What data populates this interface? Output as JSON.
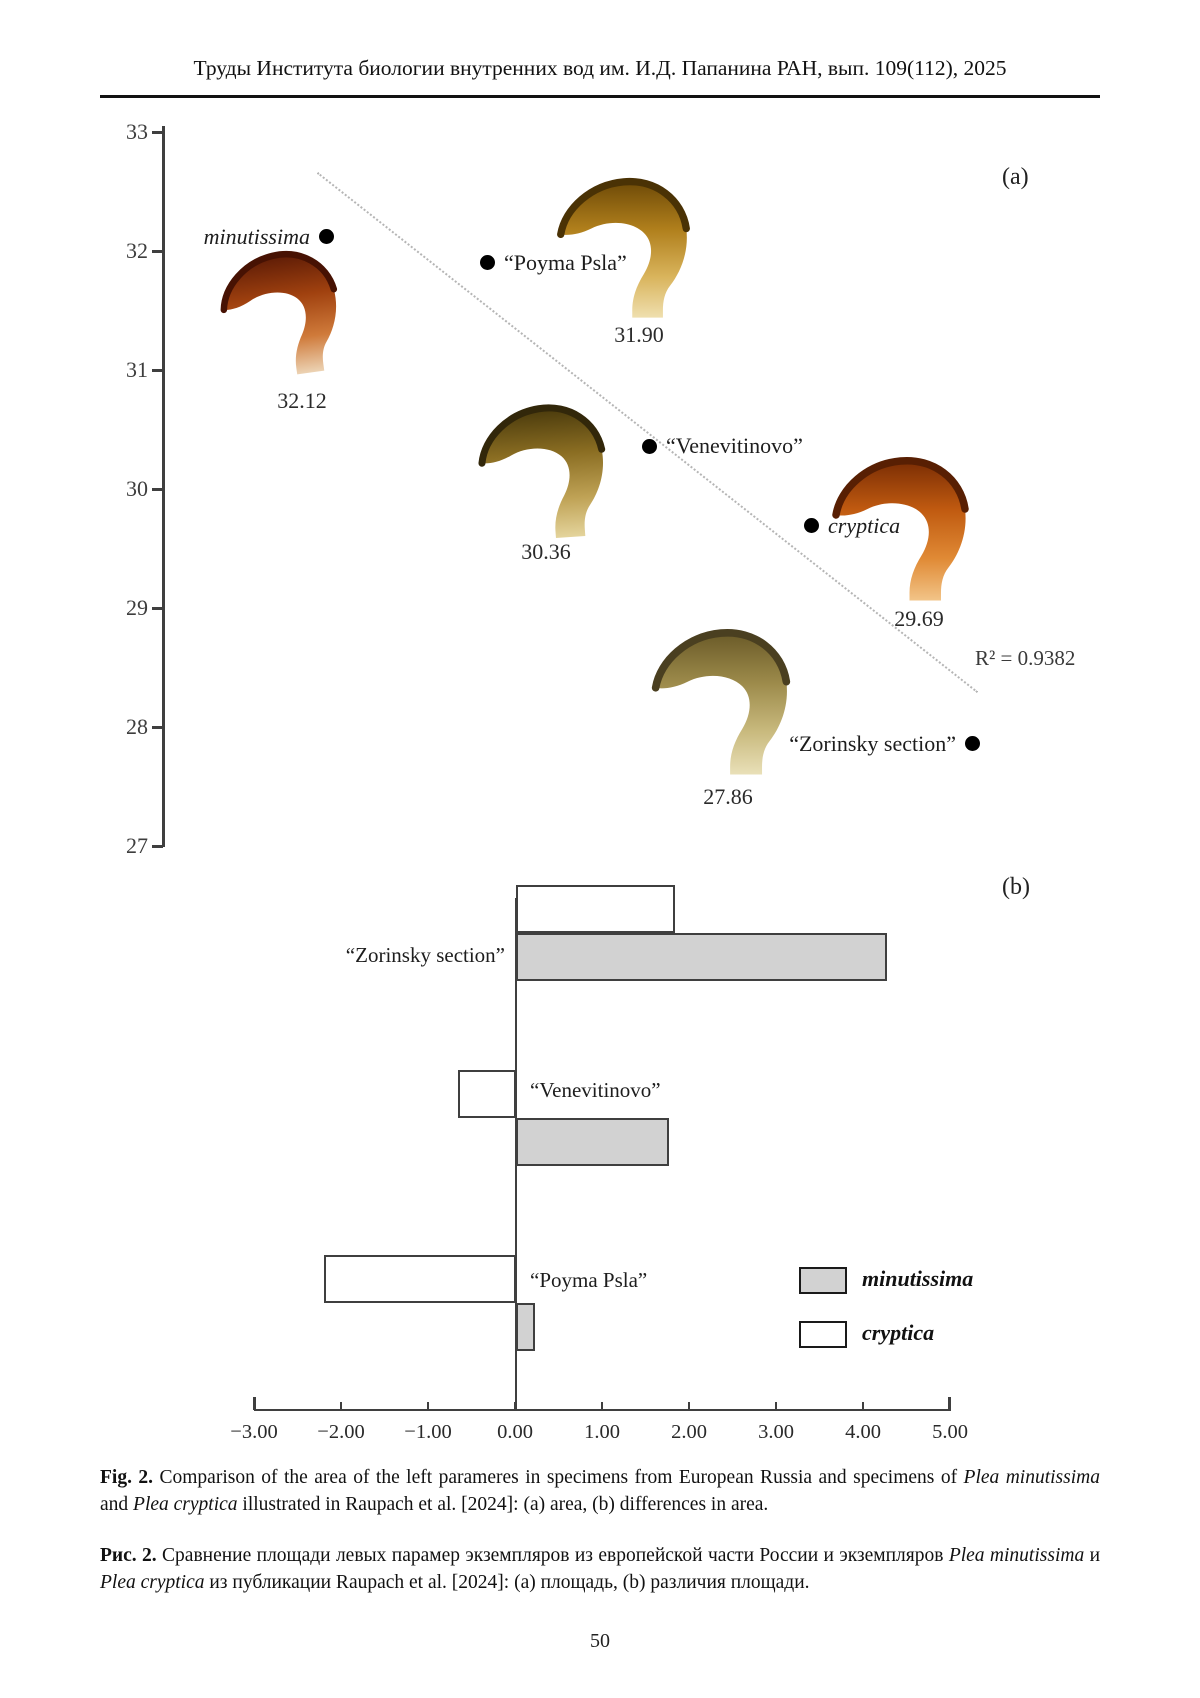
{
  "page": {
    "header": "Труды Института биологии внутренних вод им. И.Д. Папанина РАН, вып. 109(112), 2025",
    "page_number": "50"
  },
  "figure": {
    "caption_en_runs": [
      {
        "t": "Fig. 2.",
        "b": 1
      },
      {
        "t": " Comparison of the area of the left parameres in specimens from European Russia and specimens of "
      },
      {
        "t": "Plea minutissima",
        "i": 1
      },
      {
        "t": " and "
      },
      {
        "t": "Plea cryptica",
        "i": 1
      },
      {
        "t": " illustrated in Raupach et al. [2024]: (a) area, (b) differences in area."
      }
    ],
    "caption_ru_runs": [
      {
        "t": "Рис. 2.",
        "b": 1
      },
      {
        "t": " Сравнение площади левых парамер экземпляров из европейской части России и экземпляров "
      },
      {
        "t": "Plea minutissima",
        "i": 1
      },
      {
        "t": " и "
      },
      {
        "t": "Plea cryptica",
        "i": 1
      },
      {
        "t": " из публикации Raupach et al. [2024]: (a) площадь, (b) различия площади."
      }
    ]
  },
  "colors": {
    "axis": "#3f3f3f",
    "dot": "#000000",
    "trendline": "#b5b5b5",
    "bar_border": "#3f3f3f",
    "bar_minutissima_fill": "#d2d2d2",
    "bar_cryptica_fill": "#ffffff"
  },
  "chart_data": [
    {
      "type": "scatter",
      "panel_label": "(a)",
      "ylabel": "",
      "ylim": [
        27,
        33
      ],
      "yticks": [
        "33",
        "32",
        "31",
        "30",
        "29",
        "28",
        "27"
      ],
      "grid": false,
      "trendline": {
        "style": "dotted",
        "r_squared_label": "R² = 0.9382"
      },
      "points": [
        {
          "label": "minutissima",
          "italic": true,
          "value": "32.12",
          "specimen_color": "#a0410f"
        },
        {
          "label": "“Poyma Psla”",
          "italic": false,
          "value": "31.90",
          "specimen_color": "#b07f1c"
        },
        {
          "label": "“Venevitinovo”",
          "italic": false,
          "value": "30.36",
          "specimen_color": "#8a6d22"
        },
        {
          "label": "cryptica",
          "italic": true,
          "value": "29.69",
          "specimen_color": "#c05a10"
        },
        {
          "label": "“Zorinsky section”",
          "italic": false,
          "value": "27.86",
          "specimen_color": "#9c8a4a"
        }
      ]
    },
    {
      "type": "bar",
      "panel_label": "(b)",
      "orientation": "horizontal",
      "categories": [
        "“Zorinsky section”",
        "“Venevitinovo”",
        "“Poyma Psla”"
      ],
      "series": [
        {
          "name": "cryptica",
          "fill": "#ffffff",
          "values": [
            1.83,
            -0.67,
            -2.21
          ]
        },
        {
          "name": "minutissima",
          "fill": "#d2d2d2",
          "values": [
            4.26,
            1.76,
            0.22
          ]
        }
      ],
      "xlim": [
        -3,
        5
      ],
      "xticks": [
        "−3.00",
        "−2.00",
        "−1.00",
        "0.00",
        "1.00",
        "2.00",
        "3.00",
        "4.00",
        "5.00"
      ],
      "legend_position": "right"
    }
  ]
}
